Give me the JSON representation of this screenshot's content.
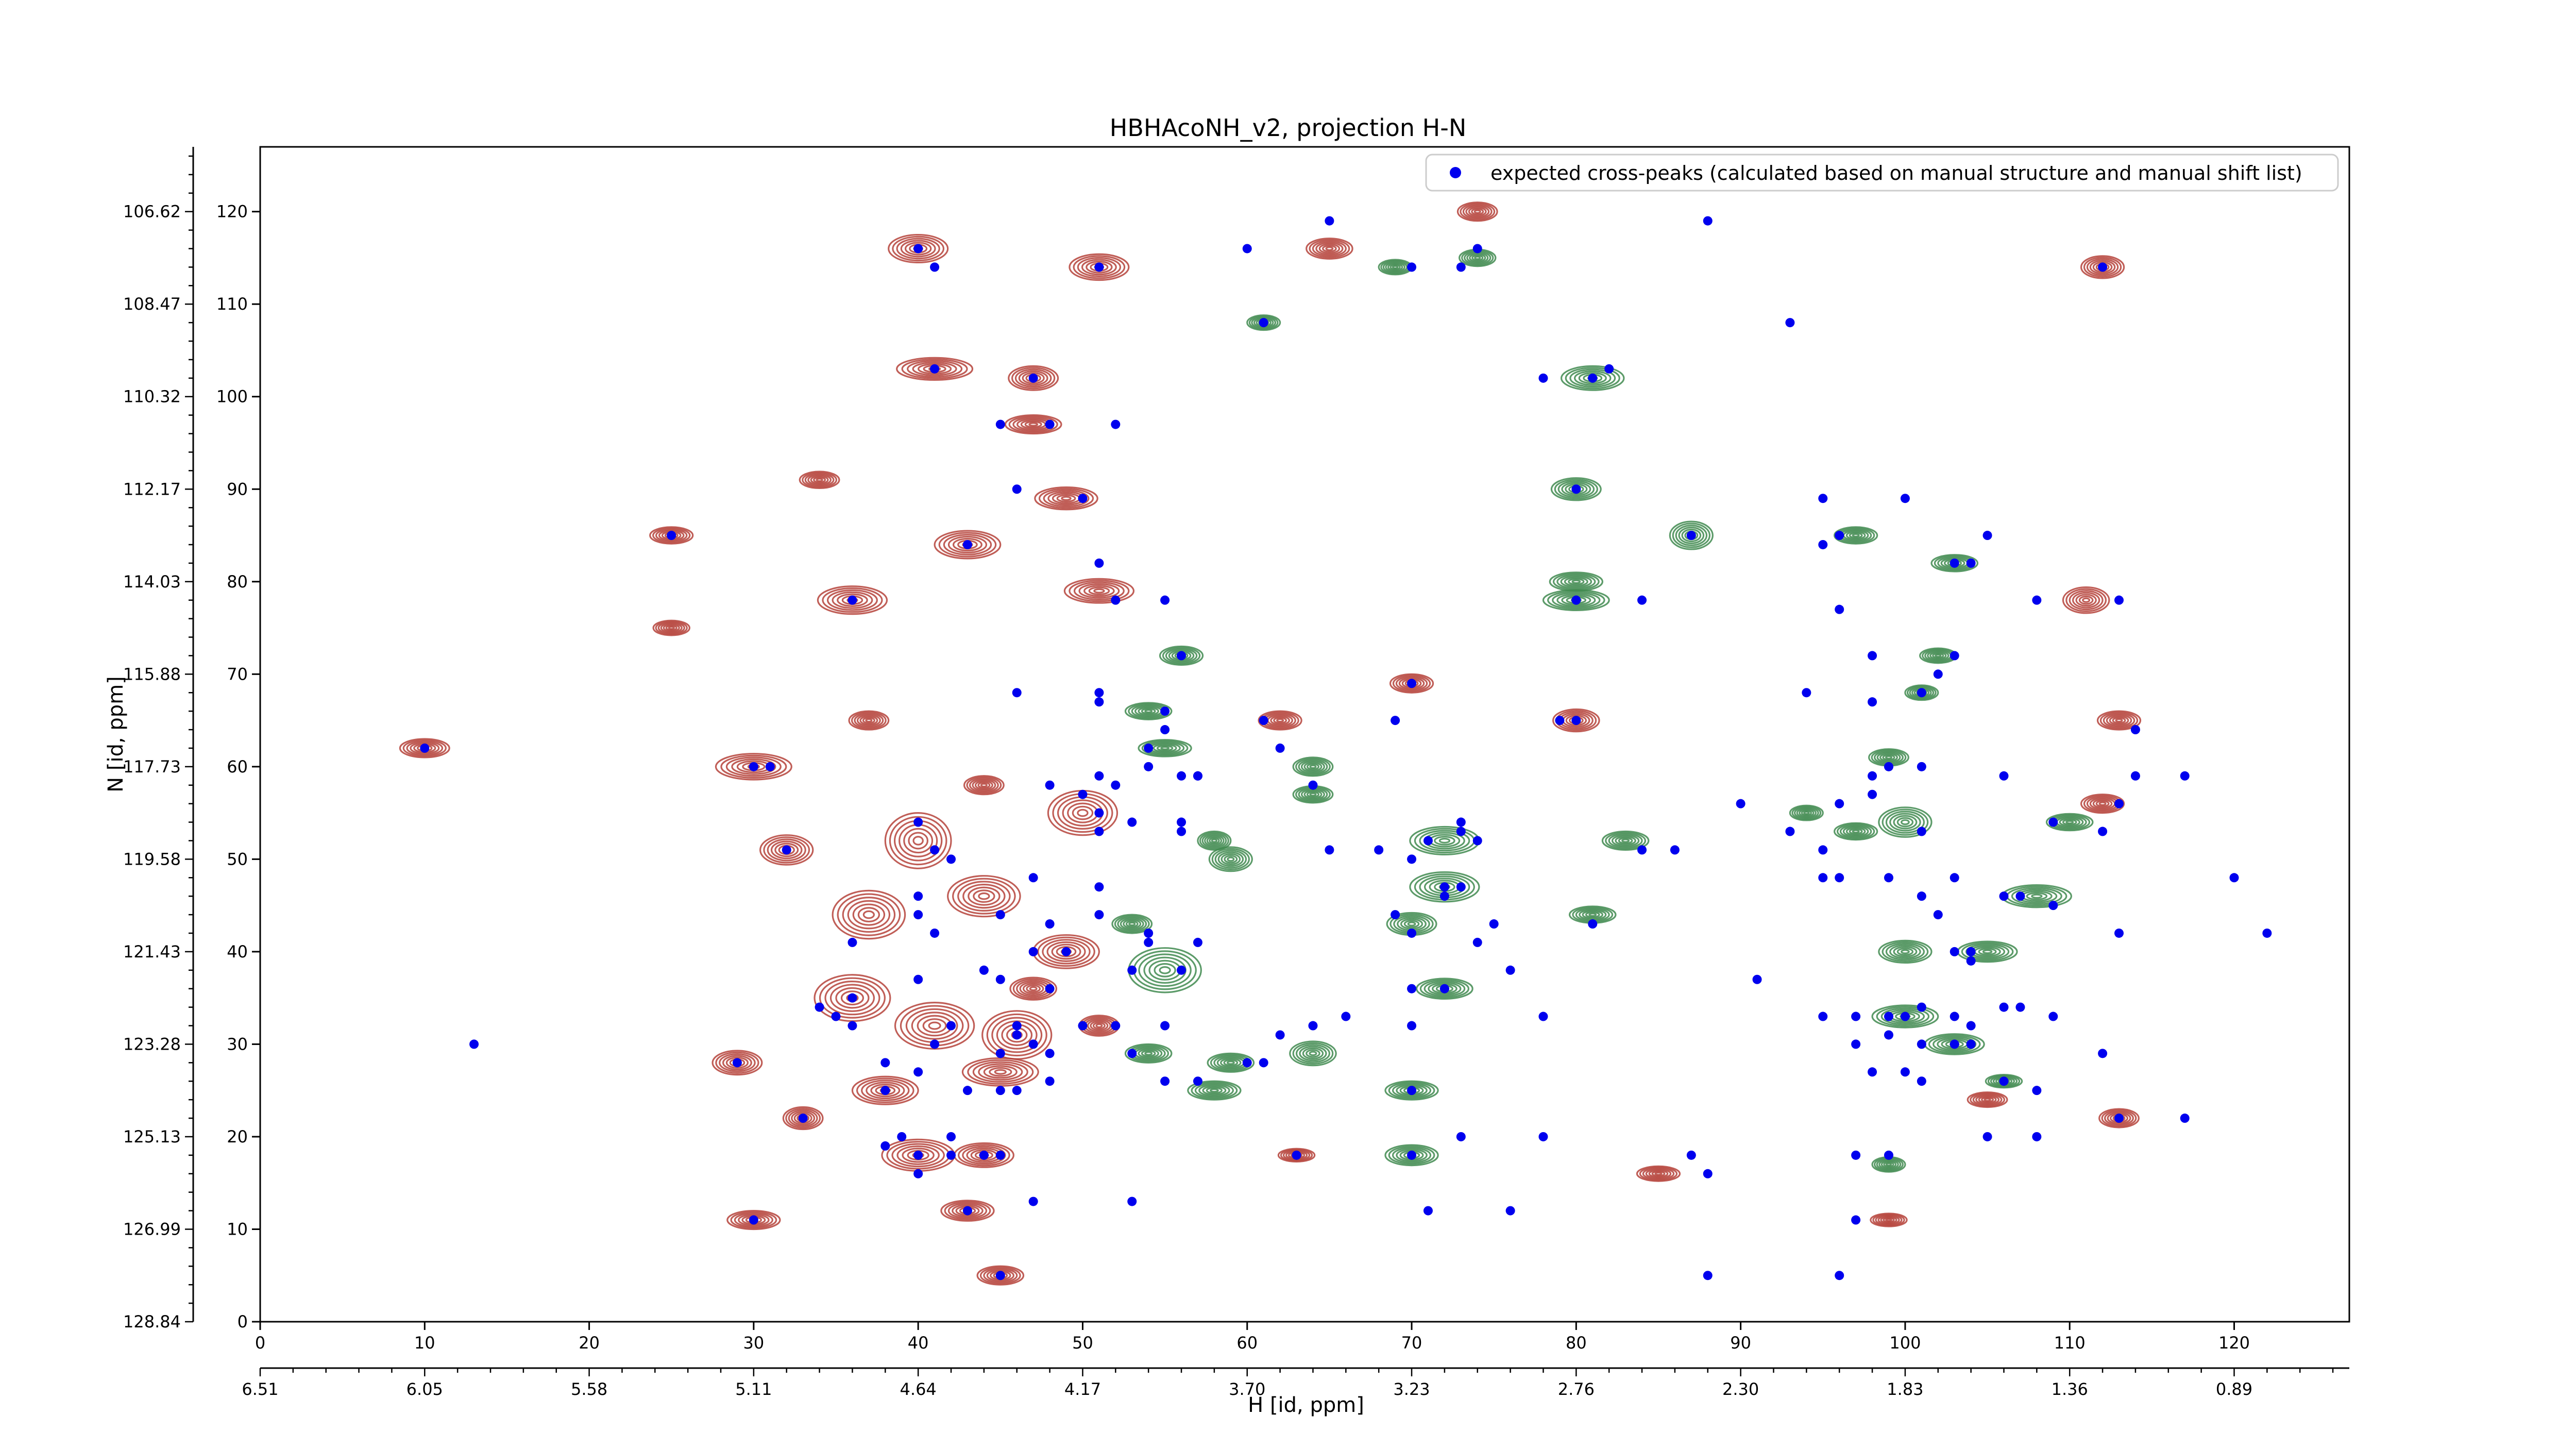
{
  "chart_data": {
    "type": "scatter",
    "title": "HBHAcoNH_v2, projection H-N",
    "xlabel": "H [id, ppm]",
    "ylabel": "N [id, ppm]",
    "xlim": [
      0,
      127
    ],
    "ylim": [
      0,
      127
    ],
    "xticks": [
      0,
      10,
      20,
      30,
      40,
      50,
      60,
      70,
      80,
      90,
      100,
      110,
      120
    ],
    "yticks": [
      0,
      10,
      20,
      30,
      40,
      50,
      60,
      70,
      80,
      90,
      100,
      110,
      120
    ],
    "x_secondary_ticks": [
      "6.51",
      "6.05",
      "5.58",
      "5.11",
      "4.64",
      "4.17",
      "3.70",
      "3.23",
      "2.76",
      "2.30",
      "1.83",
      "1.36",
      "0.89"
    ],
    "y_secondary_ticks": [
      "128.84",
      "126.99",
      "125.13",
      "123.28",
      "121.43",
      "119.58",
      "117.73",
      "115.88",
      "114.03",
      "112.17",
      "110.32",
      "108.47",
      "106.62"
    ],
    "legend": {
      "label": "expected cross-peaks (calculated based on manual structure and manual shift list)",
      "position": "top-right"
    },
    "colors": {
      "positive_contour": "#b5423a",
      "negative_contour": "#3f8a4f",
      "marker": "#0000ee"
    },
    "contour_peaks": {
      "positive": [
        [
          40,
          116,
          1.8,
          1.5
        ],
        [
          51,
          114,
          1.8,
          1.4
        ],
        [
          65,
          116,
          1.4,
          1.1
        ],
        [
          41,
          103,
          2.3,
          1.2
        ],
        [
          47,
          102,
          1.5,
          1.3
        ],
        [
          47,
          97,
          1.7,
          1.0
        ],
        [
          49,
          89,
          1.9,
          1.2
        ],
        [
          43,
          84,
          2.0,
          1.5
        ],
        [
          36,
          78,
          2.1,
          1.5
        ],
        [
          51,
          79,
          2.1,
          1.3
        ],
        [
          25,
          85,
          1.3,
          0.9
        ],
        [
          70,
          69,
          1.3,
          1.0
        ],
        [
          62,
          65,
          1.3,
          1.0
        ],
        [
          80,
          65,
          1.4,
          1.2
        ],
        [
          10,
          62,
          1.5,
          1.0
        ],
        [
          30,
          60,
          2.3,
          1.4
        ],
        [
          32,
          51,
          1.6,
          1.6
        ],
        [
          40,
          52,
          2.0,
          3.0
        ],
        [
          37,
          44,
          2.2,
          2.6
        ],
        [
          44,
          46,
          2.2,
          2.2
        ],
        [
          36,
          35,
          2.3,
          2.5
        ],
        [
          41,
          32,
          2.4,
          2.5
        ],
        [
          46,
          31,
          2.1,
          2.6
        ],
        [
          29,
          28,
          1.5,
          1.3
        ],
        [
          38,
          25,
          2.0,
          1.5
        ],
        [
          45,
          27,
          2.3,
          1.5
        ],
        [
          40,
          18,
          2.2,
          1.7
        ],
        [
          44,
          18,
          1.8,
          1.3
        ],
        [
          43,
          12,
          1.6,
          1.1
        ],
        [
          30,
          11,
          1.6,
          1.0
        ],
        [
          45,
          5,
          1.4,
          1.0
        ],
        [
          33,
          22,
          1.2,
          1.2
        ],
        [
          50,
          55,
          2.1,
          2.4
        ],
        [
          49,
          40,
          2.0,
          1.8
        ],
        [
          47,
          36,
          1.4,
          1.2
        ],
        [
          51,
          32,
          1.2,
          1.1
        ],
        [
          25,
          75,
          1.1,
          0.8
        ],
        [
          37,
          65,
          1.2,
          1.0
        ],
        [
          44,
          58,
          1.2,
          1.0
        ],
        [
          34,
          91,
          1.2,
          0.9
        ],
        [
          111,
          78,
          1.4,
          1.4
        ],
        [
          113,
          65,
          1.3,
          1.0
        ],
        [
          112,
          56,
          1.3,
          1.0
        ],
        [
          112,
          114,
          1.3,
          1.2
        ],
        [
          113,
          22,
          1.2,
          1.0
        ],
        [
          85,
          16,
          1.3,
          0.8
        ],
        [
          63,
          18,
          1.1,
          0.7
        ],
        [
          99,
          11,
          1.1,
          0.7
        ],
        [
          105,
          24,
          1.2,
          0.8
        ],
        [
          74,
          120,
          1.2,
          1.0
        ]
      ],
      "negative": [
        [
          55,
          38,
          2.2,
          2.4
        ],
        [
          58,
          25,
          1.6,
          1.0
        ],
        [
          54,
          29,
          1.4,
          1.0
        ],
        [
          72,
          52,
          2.1,
          1.5
        ],
        [
          72,
          47,
          2.1,
          1.6
        ],
        [
          70,
          43,
          1.5,
          1.2
        ],
        [
          72,
          36,
          1.7,
          1.1
        ],
        [
          70,
          25,
          1.6,
          1.0
        ],
        [
          70,
          18,
          1.6,
          1.1
        ],
        [
          59,
          50,
          1.3,
          1.3
        ],
        [
          64,
          29,
          1.4,
          1.3
        ],
        [
          59,
          28,
          1.4,
          1.0
        ],
        [
          64,
          60,
          1.2,
          1.0
        ],
        [
          58,
          52,
          1.0,
          1.0
        ],
        [
          81,
          102,
          1.9,
          1.3
        ],
        [
          80,
          90,
          1.5,
          1.2
        ],
        [
          87,
          85,
          1.3,
          1.5
        ],
        [
          80,
          80,
          1.6,
          1.0
        ],
        [
          80,
          78,
          2.0,
          1.1
        ],
        [
          83,
          52,
          1.4,
          1.0
        ],
        [
          81,
          44,
          1.4,
          0.9
        ],
        [
          97,
          53,
          1.3,
          0.9
        ],
        [
          100,
          54,
          1.6,
          1.6
        ],
        [
          100,
          40,
          1.6,
          1.2
        ],
        [
          100,
          33,
          2.0,
          1.2
        ],
        [
          103,
          30,
          1.8,
          1.1
        ],
        [
          108,
          46,
          2.1,
          1.2
        ],
        [
          105,
          40,
          1.8,
          1.1
        ],
        [
          110,
          54,
          1.4,
          0.9
        ],
        [
          103,
          82,
          1.4,
          0.9
        ],
        [
          97,
          85,
          1.3,
          0.9
        ],
        [
          99,
          17,
          1.0,
          0.8
        ],
        [
          102,
          72,
          1.1,
          0.8
        ],
        [
          101,
          68,
          1.0,
          0.8
        ],
        [
          99,
          61,
          1.2,
          0.9
        ],
        [
          56,
          72,
          1.3,
          1.0
        ],
        [
          54,
          66,
          1.4,
          0.9
        ],
        [
          55,
          62,
          1.6,
          0.9
        ],
        [
          64,
          57,
          1.2,
          0.9
        ],
        [
          53,
          43,
          1.2,
          1.0
        ],
        [
          61,
          108,
          1.0,
          0.8
        ],
        [
          74,
          115,
          1.1,
          0.9
        ],
        [
          69,
          114,
          1.0,
          0.8
        ],
        [
          94,
          55,
          1.0,
          0.8
        ],
        [
          106,
          26,
          1.1,
          0.7
        ]
      ]
    },
    "markers": [
      [
        40,
        116
      ],
      [
        41,
        114
      ],
      [
        60,
        116
      ],
      [
        65,
        119
      ],
      [
        70,
        114
      ],
      [
        74,
        116
      ],
      [
        73,
        114
      ],
      [
        51,
        114
      ],
      [
        88,
        119
      ],
      [
        61,
        108
      ],
      [
        93,
        108
      ],
      [
        112,
        114
      ],
      [
        41,
        103
      ],
      [
        47,
        102
      ],
      [
        45,
        97
      ],
      [
        48,
        97
      ],
      [
        52,
        97
      ],
      [
        78,
        102
      ],
      [
        81,
        102
      ],
      [
        82,
        103
      ],
      [
        46,
        90
      ],
      [
        50,
        89
      ],
      [
        80,
        90
      ],
      [
        87,
        85
      ],
      [
        95,
        89
      ],
      [
        100,
        89
      ],
      [
        43,
        84
      ],
      [
        25,
        85
      ],
      [
        51,
        82
      ],
      [
        95,
        84
      ],
      [
        96,
        85
      ],
      [
        103,
        82
      ],
      [
        104,
        82
      ],
      [
        105,
        85
      ],
      [
        36,
        78
      ],
      [
        52,
        78
      ],
      [
        55,
        78
      ],
      [
        80,
        78
      ],
      [
        84,
        78
      ],
      [
        96,
        77
      ],
      [
        108,
        78
      ],
      [
        113,
        78
      ],
      [
        56,
        72
      ],
      [
        70,
        69
      ],
      [
        46,
        68
      ],
      [
        51,
        68
      ],
      [
        51,
        67
      ],
      [
        55,
        66
      ],
      [
        94,
        68
      ],
      [
        98,
        72
      ],
      [
        98,
        67
      ],
      [
        101,
        68
      ],
      [
        102,
        70
      ],
      [
        103,
        72
      ],
      [
        61,
        65
      ],
      [
        79,
        65
      ],
      [
        80,
        65
      ],
      [
        62,
        62
      ],
      [
        69,
        65
      ],
      [
        54,
        62
      ],
      [
        55,
        64
      ],
      [
        57,
        59
      ],
      [
        64,
        58
      ],
      [
        10,
        62
      ],
      [
        30,
        60
      ],
      [
        31,
        60
      ],
      [
        48,
        58
      ],
      [
        51,
        59
      ],
      [
        52,
        58
      ],
      [
        54,
        60
      ],
      [
        56,
        59
      ],
      [
        57,
        59
      ],
      [
        50,
        57
      ],
      [
        98,
        59
      ],
      [
        99,
        60
      ],
      [
        101,
        60
      ],
      [
        114,
        64
      ],
      [
        114,
        59
      ],
      [
        106,
        59
      ],
      [
        117,
        59
      ],
      [
        40,
        54
      ],
      [
        51,
        55
      ],
      [
        53,
        54
      ],
      [
        56,
        53
      ],
      [
        56,
        54
      ],
      [
        51,
        53
      ],
      [
        65,
        51
      ],
      [
        68,
        51
      ],
      [
        71,
        52
      ],
      [
        73,
        54
      ],
      [
        73,
        53
      ],
      [
        74,
        52
      ],
      [
        72,
        47
      ],
      [
        70,
        50
      ],
      [
        72,
        46
      ],
      [
        69,
        44
      ],
      [
        73,
        47
      ],
      [
        84,
        51
      ],
      [
        86,
        51
      ],
      [
        90,
        56
      ],
      [
        93,
        53
      ],
      [
        96,
        56
      ],
      [
        98,
        57
      ],
      [
        101,
        53
      ],
      [
        95,
        51
      ],
      [
        113,
        56
      ],
      [
        109,
        54
      ],
      [
        112,
        53
      ],
      [
        41,
        51
      ],
      [
        42,
        50
      ],
      [
        32,
        51
      ],
      [
        40,
        46
      ],
      [
        40,
        44
      ],
      [
        36,
        41
      ],
      [
        41,
        42
      ],
      [
        45,
        44
      ],
      [
        47,
        48
      ],
      [
        48,
        43
      ],
      [
        51,
        47
      ],
      [
        49,
        40
      ],
      [
        47,
        40
      ],
      [
        44,
        38
      ],
      [
        51,
        44
      ],
      [
        54,
        42
      ],
      [
        54,
        41
      ],
      [
        57,
        41
      ],
      [
        53,
        38
      ],
      [
        56,
        38
      ],
      [
        70,
        42
      ],
      [
        74,
        41
      ],
      [
        75,
        43
      ],
      [
        81,
        43
      ],
      [
        95,
        48
      ],
      [
        96,
        48
      ],
      [
        99,
        48
      ],
      [
        101,
        46
      ],
      [
        102,
        44
      ],
      [
        103,
        48
      ],
      [
        106,
        46
      ],
      [
        107,
        46
      ],
      [
        109,
        45
      ],
      [
        113,
        42
      ],
      [
        120,
        48
      ],
      [
        122,
        42
      ],
      [
        104,
        40
      ],
      [
        104,
        39
      ],
      [
        103,
        40
      ],
      [
        91,
        37
      ],
      [
        40,
        37
      ],
      [
        45,
        37
      ],
      [
        48,
        36
      ],
      [
        36,
        35
      ],
      [
        34,
        34
      ],
      [
        35,
        33
      ],
      [
        36,
        32
      ],
      [
        42,
        32
      ],
      [
        46,
        32
      ],
      [
        47,
        30
      ],
      [
        48,
        29
      ],
      [
        45,
        29
      ],
      [
        41,
        30
      ],
      [
        46,
        31
      ],
      [
        50,
        32
      ],
      [
        52,
        32
      ],
      [
        55,
        32
      ],
      [
        62,
        31
      ],
      [
        64,
        32
      ],
      [
        66,
        33
      ],
      [
        70,
        32
      ],
      [
        72,
        36
      ],
      [
        70,
        36
      ],
      [
        76,
        38
      ],
      [
        78,
        33
      ],
      [
        95,
        33
      ],
      [
        97,
        33
      ],
      [
        99,
        33
      ],
      [
        100,
        33
      ],
      [
        101,
        34
      ],
      [
        103,
        33
      ],
      [
        104,
        32
      ],
      [
        104,
        30
      ],
      [
        106,
        34
      ],
      [
        107,
        34
      ],
      [
        109,
        33
      ],
      [
        112,
        29
      ],
      [
        103,
        30
      ],
      [
        101,
        30
      ],
      [
        99,
        31
      ],
      [
        97,
        30
      ],
      [
        98,
        27
      ],
      [
        100,
        27
      ],
      [
        101,
        26
      ],
      [
        13,
        30
      ],
      [
        29,
        28
      ],
      [
        38,
        28
      ],
      [
        38,
        25
      ],
      [
        40,
        27
      ],
      [
        43,
        25
      ],
      [
        45,
        25
      ],
      [
        46,
        25
      ],
      [
        48,
        26
      ],
      [
        53,
        29
      ],
      [
        55,
        26
      ],
      [
        57,
        26
      ],
      [
        60,
        28
      ],
      [
        61,
        28
      ],
      [
        70,
        25
      ],
      [
        106,
        26
      ],
      [
        108,
        25
      ],
      [
        105,
        20
      ],
      [
        108,
        20
      ],
      [
        113,
        22
      ],
      [
        117,
        22
      ],
      [
        33,
        22
      ],
      [
        42,
        20
      ],
      [
        39,
        20
      ],
      [
        38,
        19
      ],
      [
        40,
        18
      ],
      [
        42,
        18
      ],
      [
        44,
        18
      ],
      [
        45,
        18
      ],
      [
        40,
        16
      ],
      [
        70,
        18
      ],
      [
        73,
        20
      ],
      [
        78,
        20
      ],
      [
        63,
        18
      ],
      [
        87,
        18
      ],
      [
        97,
        18
      ],
      [
        99,
        18
      ],
      [
        88,
        16
      ],
      [
        47,
        13
      ],
      [
        53,
        13
      ],
      [
        43,
        12
      ],
      [
        71,
        12
      ],
      [
        76,
        12
      ],
      [
        97,
        11
      ],
      [
        30,
        11
      ],
      [
        45,
        5
      ],
      [
        88,
        5
      ],
      [
        96,
        5
      ]
    ]
  }
}
